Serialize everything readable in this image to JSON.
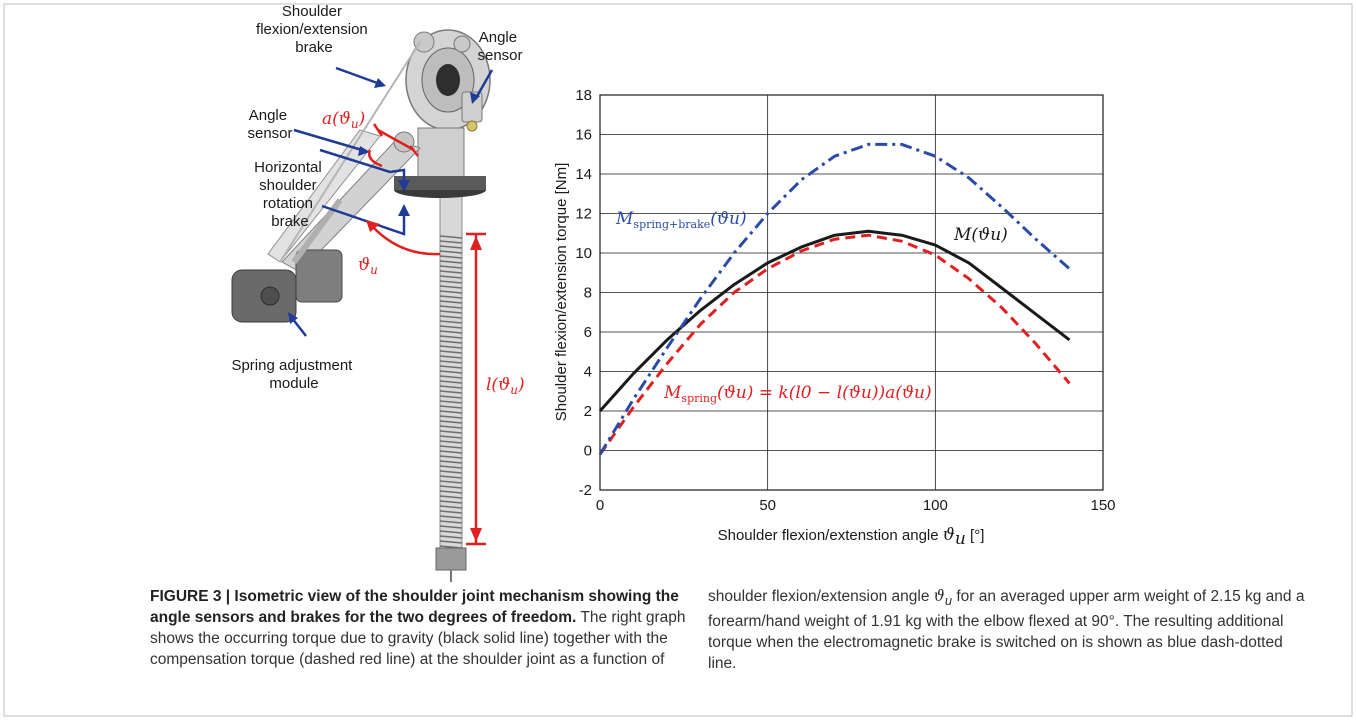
{
  "figure": {
    "labels": {
      "shoulder_brake": [
        "Shoulder",
        "flexion/extension",
        "brake"
      ],
      "angle_sensor_top": [
        "Angle",
        "sensor"
      ],
      "angle_sensor_left": [
        "Angle",
        "sensor"
      ],
      "horizontal_brake": [
        "Horizontal",
        "shoulder",
        "rotation",
        "brake"
      ],
      "spring_module": [
        "Spring adjustment",
        "module"
      ],
      "a_theta": "a(ϑ",
      "a_theta_sub": "u",
      "theta_u": "ϑ",
      "theta_u_sub": "u",
      "l_theta": "l(ϑ",
      "l_theta_sub": "u"
    },
    "colors": {
      "annotation_blue": "#1f3b96",
      "annotation_red": "#e02020"
    }
  },
  "chart_data": {
    "type": "line",
    "xlabel": "Shoulder flexion/extenstion angle ϑu [°]",
    "ylabel": "Shoulder flexion/extension torque [Nm]",
    "xlim": [
      0,
      150
    ],
    "ylim": [
      -2,
      18
    ],
    "xticks": [
      0,
      50,
      100,
      150
    ],
    "yticks": [
      -2,
      0,
      2,
      4,
      6,
      8,
      10,
      12,
      14,
      16,
      18
    ],
    "grid": true,
    "series": [
      {
        "name": "M(ϑu)",
        "color": "#1a1a1a",
        "style": "solid",
        "x": [
          0,
          10,
          20,
          30,
          40,
          50,
          60,
          70,
          80,
          90,
          100,
          110,
          120,
          130,
          140
        ],
        "y": [
          2.0,
          3.9,
          5.6,
          7.1,
          8.4,
          9.5,
          10.3,
          10.9,
          11.1,
          10.9,
          10.4,
          9.5,
          8.2,
          6.9,
          5.6
        ]
      },
      {
        "name": "Mspring(ϑu) = k(l0 − l(ϑu))a(ϑu)",
        "color": "#e02020",
        "style": "dashed",
        "x": [
          0,
          10,
          20,
          30,
          40,
          50,
          60,
          70,
          80,
          90,
          100,
          110,
          120,
          130,
          140
        ],
        "y": [
          -0.2,
          2.2,
          4.4,
          6.4,
          8.0,
          9.2,
          10.1,
          10.7,
          10.9,
          10.6,
          9.9,
          8.7,
          7.2,
          5.4,
          3.4
        ]
      },
      {
        "name": "Mspring+brake(ϑu)",
        "color": "#2a4aa8",
        "style": "dashdot",
        "x": [
          0,
          10,
          20,
          30,
          40,
          50,
          60,
          70,
          80,
          90,
          100,
          110,
          120,
          130,
          140
        ],
        "y": [
          -0.2,
          2.6,
          5.2,
          7.7,
          10.0,
          12.0,
          13.7,
          14.9,
          15.5,
          15.5,
          14.9,
          13.8,
          12.3,
          10.7,
          9.2
        ]
      }
    ],
    "annotations": {
      "blue": "M",
      "blue_sub": "spring+brake",
      "blue_tail": "(ϑu)",
      "black": "M(ϑu)",
      "red": "M",
      "red_sub": "spring",
      "red_tail": "(ϑu) = k(l0 − l(ϑu))a(ϑu)"
    }
  },
  "caption": {
    "bold": "FIGURE 3 | Isometric view of the shoulder joint mechanism showing the angle sensors and brakes for the two degrees of freedom.",
    "left_rest": " The right graph shows the occurring torque due to gravity (black solid line) together with the compensation torque (dashed red line) at the shoulder joint as a function of",
    "right_pre": "shoulder flexion/extension angle ",
    "right_sym": "ϑ",
    "right_sub": "u",
    "right_post": " for an averaged upper arm weight of 2.15 kg and a forearm/hand weight of 1.91 kg with the elbow flexed at 90°. The resulting additional torque when the electromagnetic brake is switched on is shown as blue dash-dotted line."
  }
}
